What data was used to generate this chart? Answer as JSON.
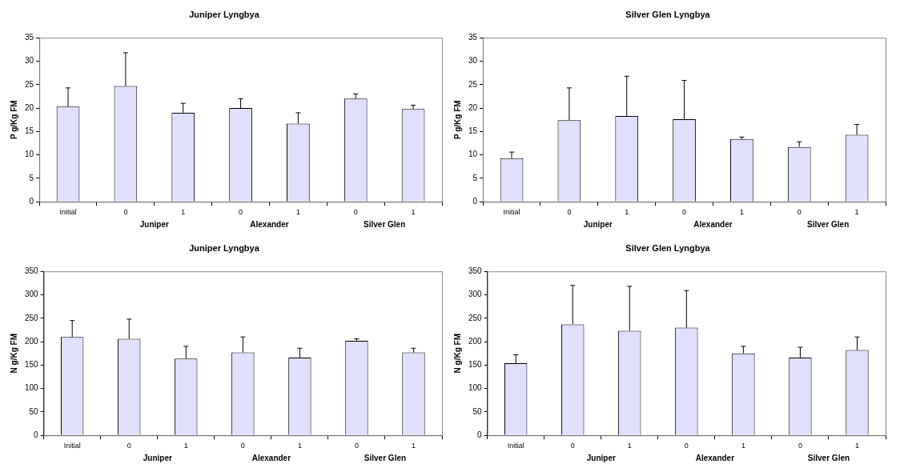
{
  "chart_data": [
    {
      "type": "bar",
      "title": "Juniper Lyngbya",
      "ylabel": "P g/Kg FM",
      "categories": [
        "Initial",
        "0",
        "1",
        "0",
        "1",
        "0",
        "1"
      ],
      "annotations": [
        "Juniper",
        "Alexander",
        "Silver Glen"
      ],
      "series": [
        {
          "color": "#e0e0fc",
          "values": [
            20.3,
            24.7,
            19,
            20,
            16.7,
            22,
            19.8
          ],
          "errors": [
            [
              20.3,
              24.3
            ],
            [
              24.7,
              31.8
            ],
            [
              19,
              21
            ],
            [
              20,
              22
            ],
            [
              16.7,
              19
            ],
            [
              22,
              23
            ],
            [
              19.8,
              20.6
            ]
          ]
        }
      ],
      "ylim": [
        0,
        35
      ],
      "yticks": [
        0,
        5,
        10,
        15,
        20,
        25,
        30,
        35
      ],
      "grid": false,
      "legend": false
    },
    {
      "type": "bar",
      "title": "Silver Glen Lyngbya",
      "ylabel": "P g/Kg FM",
      "categories": [
        "Initial",
        "0",
        "1",
        "0",
        "1",
        "0",
        "1"
      ],
      "annotations": [
        "Juniper",
        "Alexander",
        "Silver Glen"
      ],
      "series": [
        {
          "color": "#e0e0fc",
          "values": [
            9.3,
            17.4,
            18.3,
            17.6,
            13.4,
            11.7,
            14.3
          ],
          "errors": [
            [
              9.3,
              10.6
            ],
            [
              17.4,
              24.3
            ],
            [
              18.3,
              26.8
            ],
            [
              17.6,
              25.9
            ],
            [
              13.4,
              13.8
            ],
            [
              11.7,
              12.8
            ],
            [
              14.3,
              16.5
            ]
          ]
        }
      ],
      "ylim": [
        0,
        35
      ],
      "yticks": [
        0,
        5,
        10,
        15,
        20,
        25,
        30,
        35
      ],
      "grid": false,
      "legend": false
    },
    {
      "type": "bar",
      "title": "Juniper Lyngbya",
      "ylabel": "N g/Kg FM",
      "categories": [
        "Initial",
        "0",
        "1",
        "0",
        "1",
        "0",
        "1"
      ],
      "annotations": [
        "Juniper",
        "Alexander",
        "Silver Glen"
      ],
      "series": [
        {
          "color": "#e0e0fc",
          "values": [
            210,
            206,
            164,
            177,
            166,
            202,
            177
          ],
          "errors": [
            [
              210,
              245
            ],
            [
              206,
              248
            ],
            [
              164,
              190
            ],
            [
              177,
              210
            ],
            [
              166,
              186
            ],
            [
              202,
              206
            ],
            [
              177,
              186
            ]
          ]
        }
      ],
      "ylim": [
        0,
        350
      ],
      "yticks": [
        0,
        50,
        100,
        150,
        200,
        250,
        300,
        350
      ],
      "grid": false,
      "legend": false
    },
    {
      "type": "bar",
      "title": "Silver Glen Lyngbya",
      "ylabel": "N g/Kg FM",
      "categories": [
        "Initial",
        "0",
        "1",
        "0",
        "1",
        "0",
        "1"
      ],
      "annotations": [
        "Juniper",
        "Alexander",
        "Silver Glen"
      ],
      "series": [
        {
          "color": "#e0e0fc",
          "values": [
            154,
            237,
            223,
            230,
            175,
            166,
            182
          ],
          "errors": [
            [
              154,
              172
            ],
            [
              237,
              320
            ],
            [
              223,
              318
            ],
            [
              230,
              309
            ],
            [
              175,
              190
            ],
            [
              166,
              188
            ],
            [
              182,
              210
            ]
          ]
        }
      ],
      "ylim": [
        0,
        350
      ],
      "yticks": [
        0,
        50,
        100,
        150,
        200,
        250,
        300,
        350
      ],
      "grid": false,
      "legend": false
    }
  ]
}
